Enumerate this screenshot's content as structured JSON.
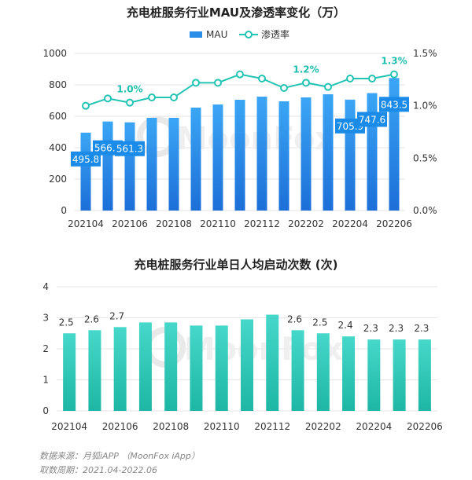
{
  "chart_data": [
    {
      "type": "bar",
      "title": "充电桩服务行业MAU及渗透率变化（万）",
      "legend": [
        "MAU",
        "渗透率"
      ],
      "categories": [
        "202104",
        "202105",
        "202106",
        "202107",
        "202108",
        "202109",
        "202110",
        "202111",
        "202112",
        "202201",
        "202202",
        "202203",
        "202204",
        "202205",
        "202206"
      ],
      "x_tick_labels": [
        "202104",
        "202106",
        "202108",
        "202110",
        "202112",
        "202202",
        "202204",
        "202206"
      ],
      "series": [
        {
          "name": "MAU",
          "type": "bar",
          "values": [
            495.8,
            566.8,
            561.3,
            590,
            590,
            655,
            675,
            705,
            725,
            695,
            720,
            740,
            705.9,
            747.6,
            843.5
          ],
          "labels": [
            "495.8",
            "566.8",
            "561.3",
            "",
            "",
            "",
            "",
            "",
            "",
            "",
            "",
            "",
            "705.9",
            "747.6",
            "843.5"
          ]
        },
        {
          "name": "渗透率",
          "type": "line",
          "values": [
            1.0,
            1.07,
            1.03,
            1.08,
            1.08,
            1.22,
            1.22,
            1.3,
            1.26,
            1.17,
            1.22,
            1.18,
            1.26,
            1.26,
            1.3
          ],
          "labels": [
            "",
            "",
            "1.0%",
            "",
            "",
            "",
            "",
            "",
            "",
            "",
            "1.2%",
            "",
            "",
            "",
            "1.3%"
          ]
        }
      ],
      "ylim_left": [
        0,
        1000
      ],
      "yticks_left": [
        "0",
        "200",
        "400",
        "600",
        "800",
        "1000"
      ],
      "ylim_right": [
        0,
        1.5
      ],
      "yticks_right": [
        "0.0%",
        "0.5%",
        "1.0%",
        "1.5%"
      ],
      "grid": true,
      "legend_position": "top-center"
    },
    {
      "type": "bar",
      "title": "充电桩服务行业单日人均启动次数 (次)",
      "categories": [
        "202104",
        "202105",
        "202106",
        "202107",
        "202108",
        "202109",
        "202110",
        "202111",
        "202112",
        "202201",
        "202202",
        "202203",
        "202204",
        "202205",
        "202206"
      ],
      "x_tick_labels": [
        "202104",
        "202106",
        "202108",
        "202110",
        "202112",
        "202202",
        "202204",
        "202206"
      ],
      "series": [
        {
          "name": "",
          "values": [
            2.5,
            2.6,
            2.7,
            2.85,
            2.85,
            2.75,
            2.75,
            2.95,
            3.1,
            2.6,
            2.5,
            2.4,
            2.3,
            2.3,
            2.3
          ],
          "labels": [
            "2.5",
            "2.6",
            "2.7",
            "",
            "",
            "",
            "",
            "",
            "",
            "2.6",
            "2.5",
            "2.4",
            "2.3",
            "2.3",
            "2.3"
          ]
        }
      ],
      "ylim": [
        0,
        4
      ],
      "yticks": [
        "0",
        "1",
        "2",
        "3",
        "4"
      ],
      "grid": true
    }
  ],
  "watermark": "MoonFox",
  "footer": {
    "source": "数据来源：月狐iAPP （MoonFox iApp）",
    "period": "取数周期：2021.04-2022.06"
  },
  "colors": {
    "bar_top": "#3aa0f0",
    "bar_bottom": "#1f6fd6",
    "line": "#22c4b4",
    "bar2_top": "#40d4c6",
    "bar2_bottom": "#1fb9a6",
    "grid": "#e6e6e6",
    "label_bg": "#1a8be8"
  }
}
